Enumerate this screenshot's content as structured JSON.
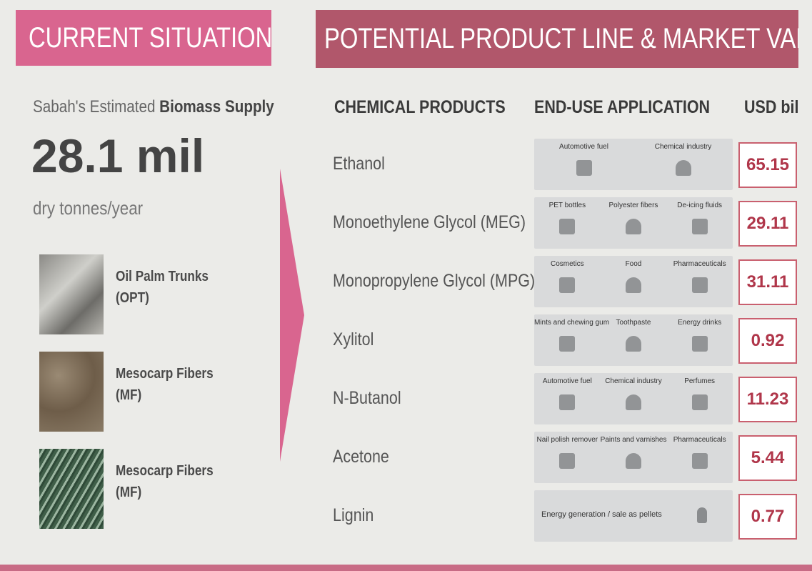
{
  "current_situation": {
    "header": "CURRENT SITUATION",
    "supply_label": {
      "prefix": "Sabah's Estimated",
      "emphasis": "Biomass Supply"
    },
    "supply_value": "28.1 mil",
    "supply_unit": "dry tonnes/year",
    "items": [
      {
        "name": "Oil Palm Trunks",
        "abbr": "(OPT)"
      },
      {
        "name": "Mesocarp Fibers",
        "abbr": "(MF)"
      },
      {
        "name": "Mesocarp Fibers",
        "abbr": "(MF)"
      }
    ]
  },
  "product_line": {
    "header": "POTENTIAL PRODUCT LINE & MARKET VALUE",
    "columns": [
      "CHEMICAL PRODUCTS",
      "END-USE APPLICATION",
      "USD bil"
    ],
    "rows": [
      {
        "product": "Ethanol",
        "applications": [
          "Automotive fuel",
          "Chemical industry"
        ],
        "value": 65.15
      },
      {
        "product": "Monoethylene Glycol (MEG)",
        "applications": [
          "PET bottles",
          "Polyester fibers",
          "De-icing fluids"
        ],
        "value": 29.11
      },
      {
        "product": "Monopropylene Glycol (MPG)",
        "applications": [
          "Cosmetics",
          "Food",
          "Pharmaceuticals"
        ],
        "value": 31.11
      },
      {
        "product": "Xylitol",
        "applications": [
          "Mints and chewing gum",
          "Toothpaste",
          "Energy drinks"
        ],
        "value": 0.92
      },
      {
        "product": "N-Butanol",
        "applications": [
          "Automotive fuel",
          "Chemical industry",
          "Perfumes"
        ],
        "value": 11.23
      },
      {
        "product": "Acetone",
        "applications": [
          "Nail polish remover",
          "Paints and varnishes",
          "Pharmaceuticals"
        ],
        "value": 5.44
      },
      {
        "product": "Lignin",
        "applications": [
          "Energy generation / sale as pellets"
        ],
        "value": 0.77
      }
    ]
  }
}
